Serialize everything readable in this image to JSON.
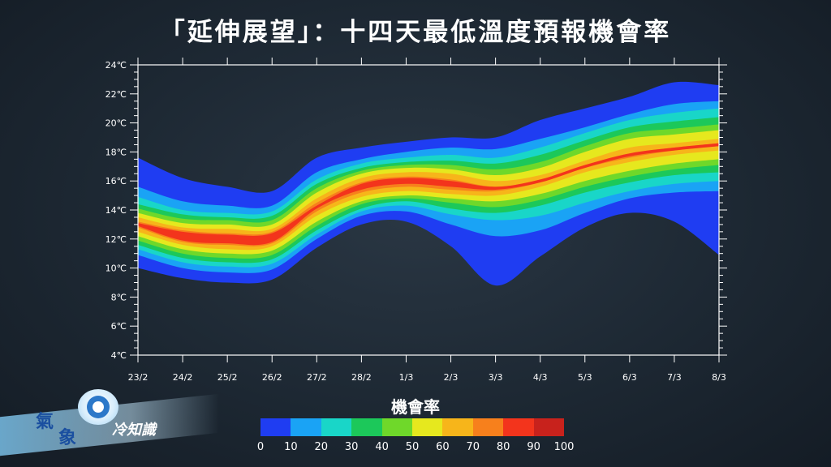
{
  "title": "「延伸展望」：十四天最低溫度預報機會率",
  "legend": {
    "title": "機會率",
    "labels": [
      "0",
      "10",
      "20",
      "30",
      "40",
      "50",
      "60",
      "70",
      "80",
      "90",
      "100"
    ],
    "colors": [
      "#1f3df2",
      "#1aa3f5",
      "#19d6c8",
      "#1cc85a",
      "#6fd82a",
      "#e6e81e",
      "#f7b51a",
      "#f7801c",
      "#f3341c",
      "#c8221c"
    ]
  },
  "logo": {
    "text_a": "氣",
    "text_b": "象",
    "text_c": "冷知識"
  },
  "chart_data": {
    "type": "heatmap",
    "title": "「延伸展望」：十四天最低溫度預報機會率",
    "x_ticks": [
      "23/2",
      "24/2",
      "25/2",
      "26/2",
      "27/2",
      "28/2",
      "1/3",
      "2/3",
      "3/3",
      "4/3",
      "5/3",
      "6/3",
      "7/3",
      "8/3"
    ],
    "y_ticks": [
      "4℃",
      "6℃",
      "8℃",
      "10℃",
      "12℃",
      "14℃",
      "16℃",
      "18℃",
      "20℃",
      "22℃",
      "24℃"
    ],
    "ylim": [
      4,
      24
    ],
    "value_range": [
      0,
      100
    ],
    "value_label": "機會率",
    "center": [
      13.0,
      12.2,
      12.0,
      12.1,
      14.2,
      15.6,
      16.0,
      15.8,
      15.5,
      16.0,
      17.0,
      17.8,
      18.2,
      18.5
    ],
    "peak": [
      78,
      86,
      92,
      90,
      76,
      84,
      88,
      84,
      72,
      68,
      70,
      70,
      68,
      66
    ],
    "lower_10pct": [
      10.0,
      9.3,
      9.0,
      9.2,
      11.4,
      13.0,
      13.2,
      11.5,
      8.8,
      10.8,
      12.8,
      13.8,
      13.2,
      10.9
    ],
    "upper_10pct": [
      17.6,
      16.2,
      15.6,
      15.3,
      17.6,
      18.3,
      18.7,
      19.0,
      19.0,
      20.2,
      21.0,
      21.8,
      22.8,
      22.6
    ],
    "bands": [
      {
        "level": 10,
        "lower": [
          10.0,
          9.3,
          9.0,
          9.2,
          11.4,
          13.0,
          13.2,
          11.5,
          8.8,
          10.8,
          12.8,
          13.8,
          13.2,
          10.9
        ],
        "upper": [
          17.6,
          16.2,
          15.6,
          15.3,
          17.6,
          18.3,
          18.7,
          19.0,
          19.0,
          20.2,
          21.0,
          21.8,
          22.8,
          22.6
        ]
      },
      {
        "level": 20,
        "lower": [
          10.9,
          10.0,
          9.7,
          9.9,
          12.0,
          13.6,
          13.9,
          13.0,
          12.2,
          12.6,
          13.8,
          14.8,
          15.2,
          15.3
        ],
        "upper": [
          15.6,
          14.6,
          14.3,
          14.3,
          16.6,
          17.5,
          18.0,
          18.3,
          18.2,
          18.9,
          19.7,
          20.6,
          21.3,
          21.5
        ]
      },
      {
        "level": 30,
        "lower": [
          11.3,
          10.4,
          10.1,
          10.3,
          12.3,
          13.9,
          14.3,
          13.7,
          13.3,
          13.6,
          14.5,
          15.3,
          15.8,
          16.0
        ],
        "upper": [
          14.9,
          14.0,
          13.8,
          13.9,
          16.1,
          17.2,
          17.6,
          17.8,
          17.6,
          18.3,
          19.3,
          20.2,
          20.7,
          21.0
        ]
      },
      {
        "level": 40,
        "lower": [
          11.6,
          10.7,
          10.4,
          10.6,
          12.6,
          14.1,
          14.6,
          14.1,
          13.8,
          14.3,
          15.2,
          15.9,
          16.4,
          16.6
        ],
        "upper": [
          14.4,
          13.7,
          13.5,
          13.6,
          15.8,
          16.9,
          17.3,
          17.4,
          17.2,
          17.8,
          18.8,
          19.7,
          20.1,
          20.4
        ]
      },
      {
        "level": 50,
        "lower": [
          11.9,
          11.0,
          10.7,
          10.9,
          12.9,
          14.4,
          14.8,
          14.5,
          14.2,
          14.7,
          15.6,
          16.3,
          16.8,
          17.1
        ],
        "upper": [
          14.1,
          13.4,
          13.3,
          13.3,
          15.5,
          16.7,
          17.1,
          17.1,
          16.8,
          17.3,
          18.4,
          19.3,
          19.6,
          19.9
        ]
      },
      {
        "level": 60,
        "lower": [
          12.2,
          11.3,
          11.0,
          11.2,
          13.2,
          14.6,
          15.0,
          14.8,
          14.6,
          15.1,
          16.0,
          16.7,
          17.2,
          17.5
        ],
        "upper": [
          13.8,
          13.1,
          13.0,
          13.0,
          15.2,
          16.5,
          16.9,
          16.8,
          16.4,
          16.9,
          18.0,
          18.9,
          19.2,
          19.5
        ]
      },
      {
        "level": 70,
        "lower": [
          12.5,
          11.6,
          11.3,
          11.5,
          13.6,
          14.9,
          15.3,
          15.1,
          15.0,
          15.6,
          16.6,
          17.3,
          17.8,
          18.1
        ],
        "upper": [
          13.5,
          12.8,
          12.7,
          12.7,
          14.8,
          16.2,
          16.6,
          16.5,
          16.0,
          16.4,
          17.4,
          18.3,
          18.6,
          18.9
        ]
      },
      {
        "level": 80,
        "lower": [
          12.8,
          11.8,
          11.6,
          11.7,
          13.9,
          15.2,
          15.6,
          15.4,
          15.3,
          15.9,
          16.9,
          17.6,
          18.1,
          18.4
        ],
        "upper": [
          13.2,
          12.6,
          12.4,
          12.5,
          14.5,
          15.9,
          16.3,
          16.1,
          15.6,
          16.1,
          17.1,
          17.9,
          18.3,
          18.6
        ]
      },
      {
        "level": 90,
        "lower": [
          12.9,
          11.9,
          11.7,
          11.8,
          14.1,
          15.4,
          15.8,
          15.6,
          15.4,
          15.9,
          16.9,
          17.7,
          18.1,
          18.4
        ],
        "upper": [
          13.1,
          12.5,
          12.3,
          12.4,
          14.3,
          15.8,
          16.2,
          16.0,
          15.6,
          16.1,
          17.1,
          17.9,
          18.3,
          18.6
        ]
      }
    ]
  }
}
